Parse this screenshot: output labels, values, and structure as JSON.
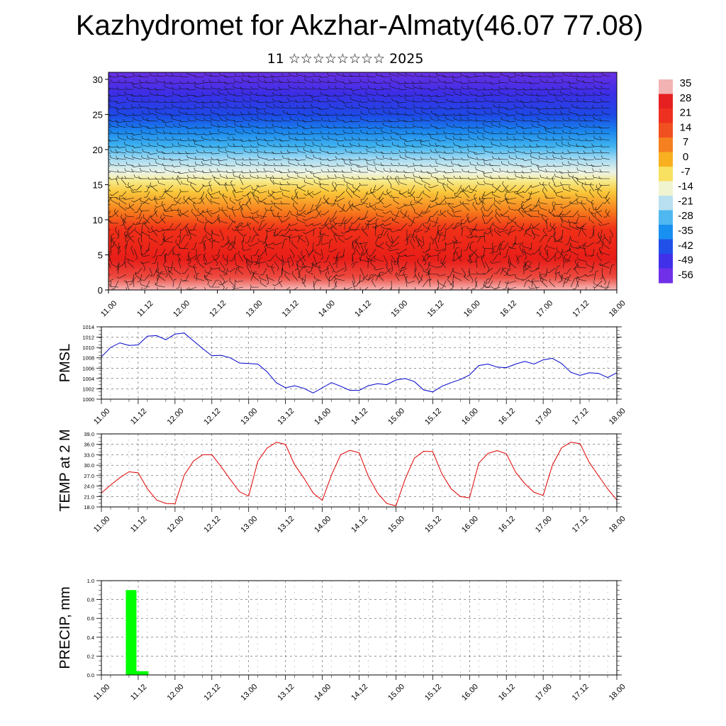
{
  "title": "Kazhydromet for Akzhar-Almaty(46.07 77.08)",
  "subtitle": "11 ☆☆☆☆☆☆☆☆ 2025",
  "x_ticks": [
    "11.00",
    "11.12",
    "12.00",
    "12.12",
    "13.00",
    "13.12",
    "14.00",
    "14.12",
    "15.00",
    "15.12",
    "16.00",
    "16.12",
    "17.00",
    "17.12",
    "18.00"
  ],
  "chart_data": [
    {
      "type": "heatmap",
      "description": "temperature cross-section with wind barbs",
      "xlabel": "",
      "ylabel": "",
      "x_ticks": [
        "11.00",
        "11.12",
        "12.00",
        "12.12",
        "13.00",
        "13.12",
        "14.00",
        "14.12",
        "15.00",
        "15.12",
        "16.00",
        "16.12",
        "17.00",
        "17.12",
        "18.00"
      ],
      "y_ticks": [
        0,
        5,
        10,
        15,
        20,
        25,
        30
      ],
      "ylim": [
        0,
        31
      ],
      "colorbar_labels": [
        "35",
        "28",
        "21",
        "14",
        "7",
        "0",
        "-7",
        "-14",
        "-21",
        "-28",
        "-35",
        "-42",
        "-49",
        "-56"
      ],
      "colorbar_colors": [
        "#f4b3b3",
        "#e62020",
        "#ee3020",
        "#f05020",
        "#f58020",
        "#f8b020",
        "#f8e060",
        "#f0f4d0",
        "#b8e0f0",
        "#50b8f0",
        "#1890f0",
        "#2050e8",
        "#4030e8",
        "#7030e8"
      ]
    },
    {
      "type": "line",
      "ylabel": "PMSL",
      "ylim": [
        1000,
        1014
      ],
      "y_ticks": [
        "1000",
        "1002",
        "1004",
        "1006",
        "1008",
        "1010",
        "1012",
        "1014"
      ],
      "x_ticks": [
        "11.00",
        "11.12",
        "12.00",
        "12.12",
        "13.00",
        "13.12",
        "14.00",
        "14.12",
        "15.00",
        "15.12",
        "16.00",
        "16.12",
        "17.00",
        "17.12",
        "18.00"
      ],
      "x": [
        0,
        3,
        6,
        9,
        12,
        15,
        18,
        21,
        24,
        27,
        30,
        33,
        36,
        39,
        42,
        45,
        48,
        51,
        54,
        57,
        60,
        63,
        66,
        69,
        72,
        75,
        78,
        81,
        84,
        87,
        90,
        93,
        96,
        99,
        102,
        105,
        108,
        111,
        114,
        117,
        120,
        123,
        126,
        129,
        132,
        135,
        138,
        141,
        144,
        147,
        150,
        153,
        156,
        159,
        162,
        165,
        168
      ],
      "series": [
        {
          "color": "#0000cc",
          "values": [
            1008.2,
            1010.0,
            1010.9,
            1010.4,
            1010.5,
            1012.2,
            1012.3,
            1011.5,
            1012.6,
            1012.8,
            1011.3,
            1009.8,
            1008.4,
            1008.5,
            1008.0,
            1007.0,
            1006.9,
            1006.8,
            1005.3,
            1003.2,
            1002.2,
            1002.6,
            1002.1,
            1001.2,
            1002.2,
            1003.2,
            1002.5,
            1001.7,
            1001.7,
            1002.6,
            1003.0,
            1002.8,
            1003.7,
            1004.0,
            1003.4,
            1001.8,
            1001.4,
            1002.5,
            1003.2,
            1003.8,
            1004.7,
            1006.5,
            1006.8,
            1006.2,
            1006.1,
            1006.8,
            1007.3,
            1006.8,
            1007.6,
            1007.9,
            1006.9,
            1005.2,
            1004.6,
            1005.1,
            1005.0,
            1004.2,
            1005.1
          ]
        }
      ]
    },
    {
      "type": "line",
      "ylabel": "TEMP at 2 M",
      "ylim": [
        18,
        39
      ],
      "y_ticks": [
        "18.0",
        "21.0",
        "24.0",
        "27.0",
        "30.0",
        "33.0",
        "36.0",
        "39.0"
      ],
      "x_ticks": [
        "11.00",
        "11.12",
        "12.00",
        "12.12",
        "13.00",
        "13.12",
        "14.00",
        "14.12",
        "15.00",
        "15.12",
        "16.00",
        "16.12",
        "17.00",
        "17.12",
        "18.00"
      ],
      "x": [
        0,
        3,
        6,
        9,
        12,
        15,
        18,
        21,
        24,
        27,
        30,
        33,
        36,
        39,
        42,
        45,
        48,
        51,
        54,
        57,
        60,
        63,
        66,
        69,
        72,
        75,
        78,
        81,
        84,
        87,
        90,
        93,
        96,
        99,
        102,
        105,
        108,
        111,
        114,
        117,
        120,
        123,
        126,
        129,
        132,
        135,
        138,
        141,
        144,
        147,
        150,
        153,
        156,
        159,
        162,
        165,
        168
      ],
      "series": [
        {
          "color": "#e00000",
          "values": [
            22.0,
            24.3,
            26.4,
            28.1,
            27.8,
            23.2,
            20.0,
            19.0,
            18.9,
            27.1,
            31.2,
            33.0,
            33.0,
            29.6,
            25.9,
            22.4,
            21.1,
            31.2,
            34.9,
            36.6,
            36.0,
            30.1,
            26.3,
            22.0,
            19.9,
            27.2,
            33.0,
            34.3,
            33.6,
            26.8,
            22.0,
            19.0,
            18.3,
            26.0,
            32.0,
            34.0,
            33.9,
            27.5,
            23.2,
            21.0,
            20.6,
            30.6,
            33.4,
            34.2,
            33.3,
            28.0,
            24.7,
            22.2,
            21.3,
            30.0,
            35.0,
            36.6,
            36.2,
            30.8,
            27.0,
            23.2,
            20.0
          ]
        }
      ]
    },
    {
      "type": "bar",
      "ylabel": "PRECIP, mm",
      "ylim": [
        0,
        1
      ],
      "y_ticks": [
        "0.0",
        "0.2",
        "0.4",
        "0.6",
        "0.8",
        "1.0"
      ],
      "x_ticks": [
        "11.00",
        "11.12",
        "12.00",
        "12.12",
        "13.00",
        "13.12",
        "14.00",
        "14.12",
        "15.00",
        "15.12",
        "16.00",
        "16.12",
        "17.00",
        "17.12",
        "18.00"
      ],
      "x": [
        9,
        12
      ],
      "series": [
        {
          "color": "#00ff00",
          "values": [
            0.9,
            0.04
          ]
        }
      ]
    }
  ]
}
